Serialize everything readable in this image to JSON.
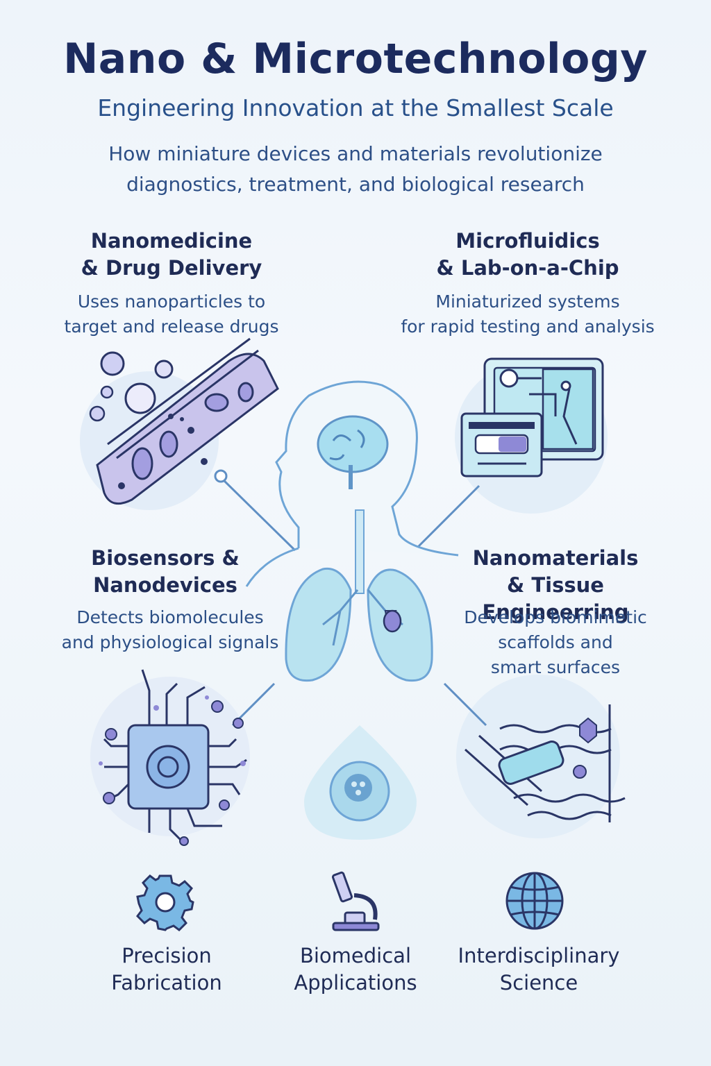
{
  "header": {
    "title": "Nano & Microtechnology",
    "subtitle": "Engineering Innovation at the Smallest Scale",
    "intro": "How miniature devices and materials revolutionize diagnostics, treatment, and biological research"
  },
  "sections": {
    "nanomedicine": {
      "title": "Nanomedicine\n& Drug Delivery",
      "desc": "Uses nanoparticles to\ntarget and release drugs"
    },
    "microfluidics": {
      "title": "Microfluidics\n& Lab-on-a-Chip",
      "desc": "Miniaturized systems\nfor rapid testing and analysis"
    },
    "biosensors": {
      "title": "Biosensors &\nNanodevices",
      "desc": "Detects biomolecules\nand physiological signals"
    },
    "nanomaterials": {
      "title": "Nanomaterials\n& Tissue Engineerring",
      "desc": "Develops biomimetic\nscaffolds and\nsmart surfaces"
    }
  },
  "footer": {
    "items": [
      {
        "label": "Precision\nFabrication",
        "icon": "gear-icon"
      },
      {
        "label": "Biomedical\nApplications",
        "icon": "microscope-icon"
      },
      {
        "label": "Interdisciplinary\nScience",
        "icon": "globe-icon"
      }
    ]
  },
  "colors": {
    "navy": "#1c2b5e",
    "blue": "#2d4f86",
    "line": "#5f8fc4",
    "cyan": "#9fdcec",
    "lavender": "#c7c3ea",
    "purple": "#8a86cf"
  }
}
